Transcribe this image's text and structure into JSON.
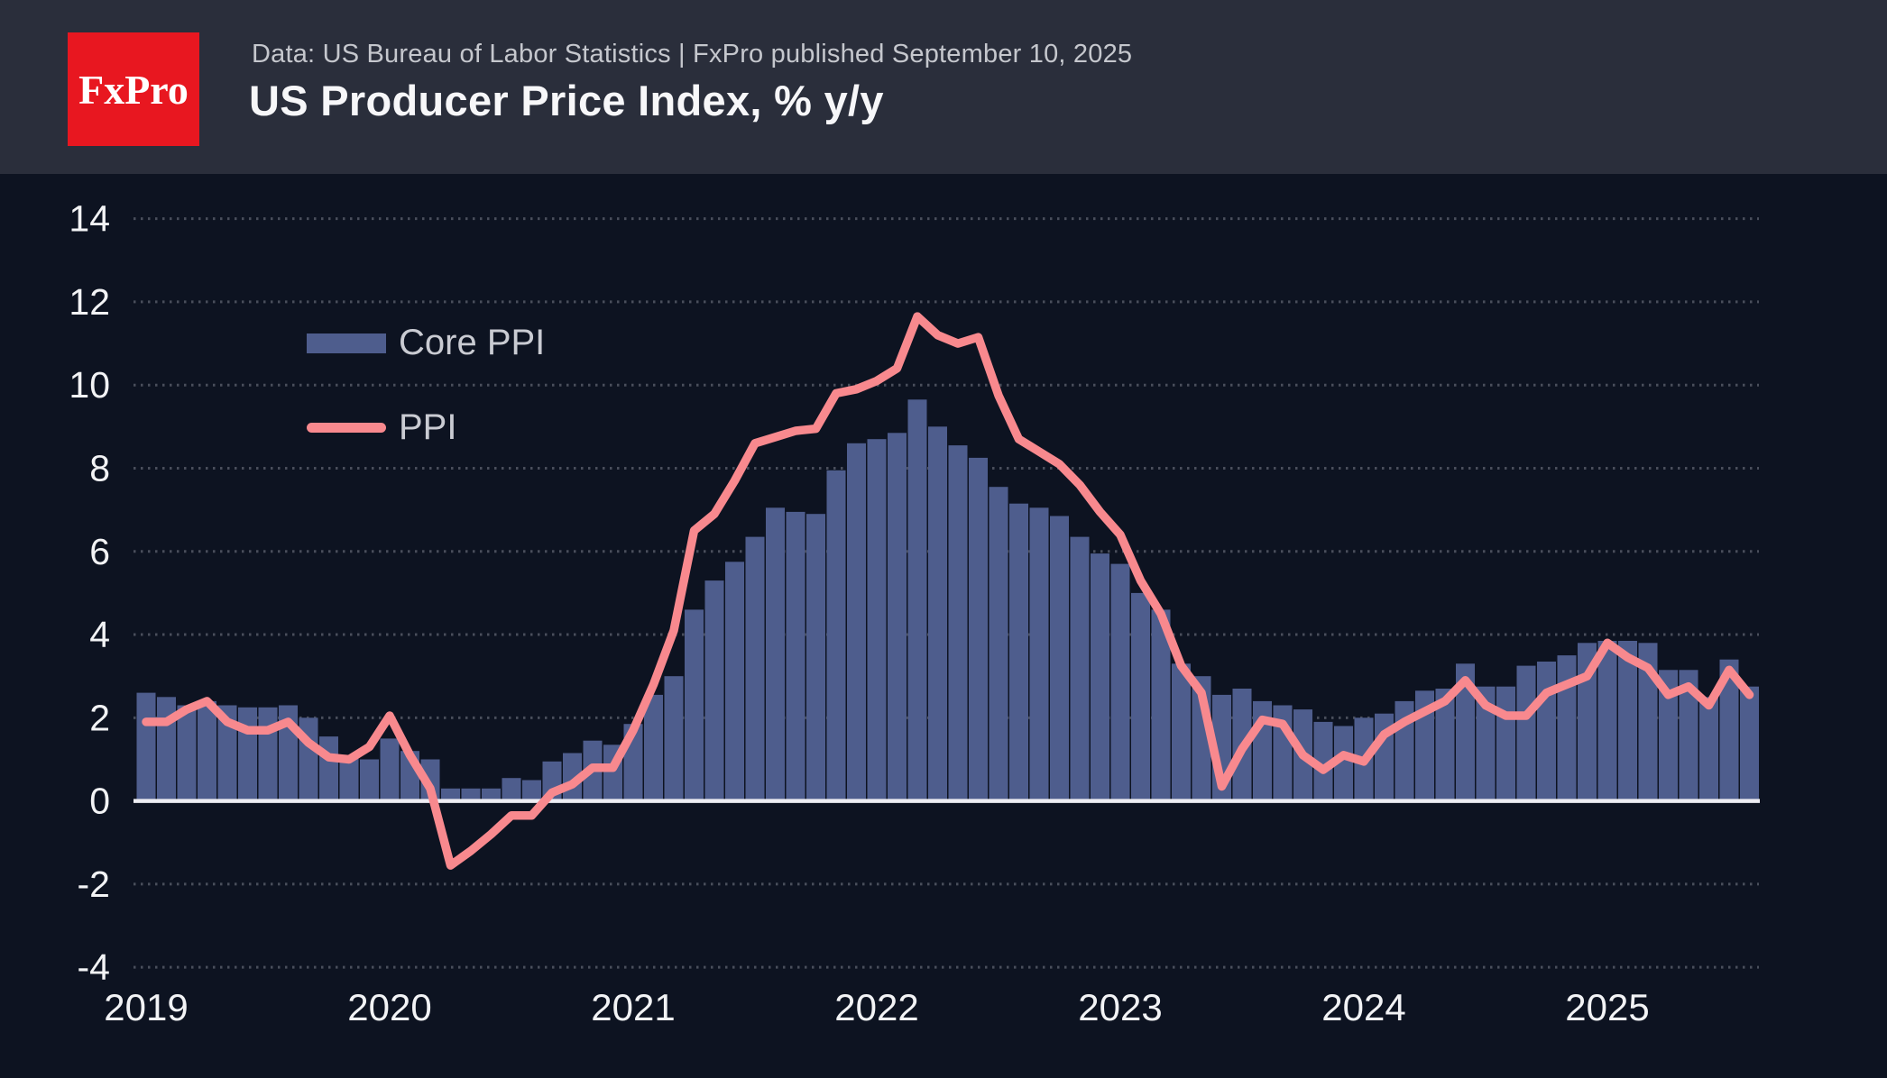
{
  "header": {
    "logo_text": "FxPro",
    "subtitle": "Data: US Bureau of Labor Statistics  |  FxPro published September 10, 2025",
    "title": "US Producer Price Index, % y/y"
  },
  "legend": {
    "core_label": "Core PPI",
    "ppi_label": "PPI"
  },
  "colors": {
    "header_bg": "#2A2E3B",
    "chart_bg": "#0D1321",
    "bar": "#4E5D8D",
    "line": "#F8898E",
    "grid_dots": "#7A7F8C",
    "zero_line": "#EDEDF3",
    "logo_red": "#E81720",
    "axis_text": "#F2F3F5",
    "subtitle_text": "#C5C7CD",
    "legend_text": "#C9CBD2"
  },
  "chart_data": {
    "type": "bar",
    "title": "US Producer Price Index, % y/y",
    "xlabel": "",
    "ylabel": "% y/y",
    "ylim": [
      -4.9,
      14.9
    ],
    "y_ticks": [
      14,
      12,
      10,
      8,
      6,
      4,
      2,
      0,
      -2,
      -4
    ],
    "x_tick_labels": [
      "2019",
      "2020",
      "2021",
      "2022",
      "2023",
      "2024",
      "2025"
    ],
    "x_tick_month_index": [
      0,
      12,
      24,
      36,
      48,
      60,
      72
    ],
    "grid": "dotted horizontal",
    "legend_position": "upper left",
    "months": [
      "2019-01",
      "2019-02",
      "2019-03",
      "2019-04",
      "2019-05",
      "2019-06",
      "2019-07",
      "2019-08",
      "2019-09",
      "2019-10",
      "2019-11",
      "2019-12",
      "2020-01",
      "2020-02",
      "2020-03",
      "2020-04",
      "2020-05",
      "2020-06",
      "2020-07",
      "2020-08",
      "2020-09",
      "2020-10",
      "2020-11",
      "2020-12",
      "2021-01",
      "2021-02",
      "2021-03",
      "2021-04",
      "2021-05",
      "2021-06",
      "2021-07",
      "2021-08",
      "2021-09",
      "2021-10",
      "2021-11",
      "2021-12",
      "2022-01",
      "2022-02",
      "2022-03",
      "2022-04",
      "2022-05",
      "2022-06",
      "2022-07",
      "2022-08",
      "2022-09",
      "2022-10",
      "2022-11",
      "2022-12",
      "2023-01",
      "2023-02",
      "2023-03",
      "2023-04",
      "2023-05",
      "2023-06",
      "2023-07",
      "2023-08",
      "2023-09",
      "2023-10",
      "2023-11",
      "2023-12",
      "2024-01",
      "2024-02",
      "2024-03",
      "2024-04",
      "2024-05",
      "2024-06",
      "2024-07",
      "2024-08",
      "2024-09",
      "2024-10",
      "2024-11",
      "2024-12",
      "2025-01",
      "2025-02",
      "2025-03",
      "2025-04",
      "2025-05",
      "2025-06",
      "2025-07",
      "2025-08"
    ],
    "series": [
      {
        "name": "Core PPI",
        "type": "bar",
        "values": [
          2.6,
          2.5,
          2.3,
          2.4,
          2.3,
          2.25,
          2.25,
          2.3,
          2.0,
          1.55,
          1.1,
          1.0,
          1.5,
          1.2,
          1.0,
          0.3,
          0.3,
          0.3,
          0.55,
          0.5,
          0.95,
          1.15,
          1.45,
          1.35,
          1.85,
          2.55,
          3.0,
          4.6,
          5.3,
          5.75,
          6.35,
          7.05,
          6.95,
          6.9,
          7.95,
          8.6,
          8.7,
          8.85,
          9.65,
          9.0,
          8.55,
          8.25,
          7.55,
          7.15,
          7.05,
          6.85,
          6.35,
          5.95,
          5.7,
          5.0,
          4.6,
          3.3,
          3.0,
          2.55,
          2.7,
          2.4,
          2.3,
          2.2,
          1.9,
          1.8,
          2.0,
          2.1,
          2.4,
          2.65,
          2.7,
          3.3,
          2.75,
          2.75,
          3.25,
          3.35,
          3.5,
          3.8,
          3.85,
          3.85,
          3.8,
          3.15,
          3.15,
          2.5,
          3.4,
          2.75
        ]
      },
      {
        "name": "PPI",
        "type": "line",
        "values": [
          1.9,
          1.9,
          2.2,
          2.4,
          1.9,
          1.7,
          1.7,
          1.9,
          1.4,
          1.05,
          1.0,
          1.3,
          2.05,
          1.1,
          0.3,
          -1.55,
          -1.2,
          -0.8,
          -0.35,
          -0.35,
          0.2,
          0.4,
          0.8,
          0.8,
          1.7,
          2.8,
          4.1,
          6.5,
          6.9,
          7.7,
          8.6,
          8.75,
          8.9,
          8.95,
          9.8,
          9.9,
          10.1,
          10.4,
          11.65,
          11.2,
          11.0,
          11.15,
          9.75,
          8.7,
          8.4,
          8.1,
          7.6,
          6.95,
          6.4,
          5.3,
          4.5,
          3.25,
          2.6,
          0.35,
          1.25,
          1.95,
          1.85,
          1.1,
          0.75,
          1.1,
          0.95,
          1.6,
          1.9,
          2.15,
          2.4,
          2.9,
          2.3,
          2.05,
          2.05,
          2.6,
          2.8,
          3.0,
          3.8,
          3.45,
          3.2,
          2.55,
          2.75,
          2.3,
          3.15,
          2.55
        ]
      }
    ]
  }
}
